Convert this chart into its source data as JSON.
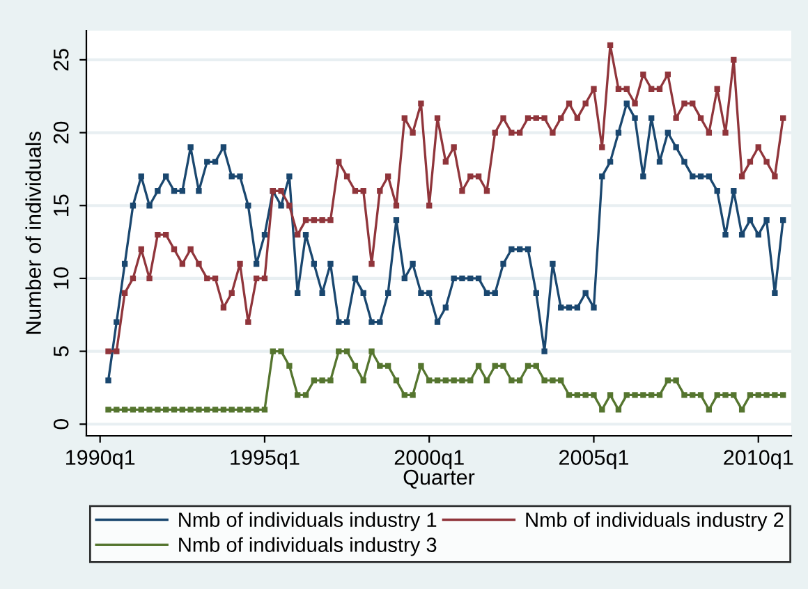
{
  "chart_data": {
    "type": "line",
    "xlabel": "Quarter",
    "ylabel": "Number of individuals",
    "x": [
      "1990-04",
      "1990-07",
      "1990-10",
      "1991-01",
      "1991-04",
      "1991-07",
      "1991-10",
      "1992-01",
      "1992-04",
      "1992-07",
      "1992-10",
      "1993-01",
      "1993-04",
      "1993-07",
      "1993-10",
      "1994-01",
      "1994-04",
      "1994-07",
      "1994-10",
      "1995-01",
      "1995-04",
      "1995-07",
      "1995-10",
      "1996-01",
      "1996-04",
      "1996-07",
      "1996-10",
      "1997-01",
      "1997-04",
      "1997-07",
      "1997-10",
      "1998-01",
      "1998-04",
      "1998-07",
      "1998-10",
      "1999-01",
      "1999-04",
      "1999-07",
      "1999-10",
      "2000-01",
      "2000-04",
      "2000-07",
      "2000-10",
      "2001-01",
      "2001-04",
      "2001-07",
      "2001-10",
      "2002-01",
      "2002-04",
      "2002-07",
      "2002-10",
      "2003-01",
      "2003-04",
      "2003-07",
      "2003-10",
      "2004-01",
      "2004-04",
      "2004-07",
      "2004-10",
      "2005-01",
      "2005-04",
      "2005-07",
      "2005-10",
      "2006-01",
      "2006-04",
      "2006-07",
      "2006-10",
      "2007-01",
      "2007-04",
      "2007-07",
      "2007-10",
      "2008-01",
      "2008-04",
      "2008-07",
      "2008-10",
      "2009-01",
      "2009-04",
      "2009-07",
      "2009-10",
      "2010-01",
      "2010-04",
      "2010-07",
      "2010-10"
    ],
    "series": [
      {
        "name": "Nmb of individuals industry 1",
        "color": "#1a476f",
        "values": [
          3,
          7,
          11,
          15,
          17,
          15,
          16,
          17,
          16,
          16,
          19,
          16,
          18,
          18,
          19,
          17,
          17,
          15,
          11,
          13,
          16,
          15,
          17,
          9,
          13,
          11,
          9,
          11,
          7,
          7,
          10,
          9,
          7,
          7,
          9,
          14,
          10,
          11,
          9,
          9,
          7,
          8,
          10,
          10,
          10,
          10,
          9,
          9,
          11,
          12,
          12,
          12,
          9,
          5,
          11,
          8,
          8,
          8,
          9,
          8,
          17,
          18,
          20,
          22,
          21,
          17,
          21,
          18,
          20,
          19,
          18,
          17,
          17,
          17,
          16,
          13,
          16,
          13,
          14,
          13,
          14,
          9,
          14
        ]
      },
      {
        "name": "Nmb of individuals industry 2",
        "color": "#90353b",
        "values": [
          5,
          5,
          9,
          10,
          12,
          10,
          13,
          13,
          12,
          11,
          12,
          11,
          10,
          10,
          8,
          9,
          11,
          7,
          10,
          10,
          16,
          16,
          15,
          13,
          14,
          14,
          14,
          14,
          18,
          17,
          16,
          16,
          11,
          16,
          17,
          15,
          21,
          20,
          22,
          15,
          21,
          18,
          19,
          16,
          17,
          17,
          16,
          20,
          21,
          20,
          20,
          21,
          21,
          21,
          20,
          21,
          22,
          21,
          22,
          23,
          19,
          26,
          23,
          23,
          22,
          24,
          23,
          23,
          24,
          21,
          22,
          22,
          21,
          20,
          23,
          20,
          25,
          17,
          18,
          19,
          18,
          17,
          21
        ]
      },
      {
        "name": "Nmb of individuals industry 3",
        "color": "#55752f",
        "values": [
          1,
          1,
          1,
          1,
          1,
          1,
          1,
          1,
          1,
          1,
          1,
          1,
          1,
          1,
          1,
          1,
          1,
          1,
          1,
          1,
          5,
          5,
          4,
          2,
          2,
          3,
          3,
          3,
          5,
          5,
          4,
          3,
          5,
          4,
          4,
          3,
          2,
          2,
          4,
          3,
          3,
          3,
          3,
          3,
          3,
          4,
          3,
          4,
          4,
          3,
          3,
          4,
          4,
          3,
          3,
          3,
          2,
          2,
          2,
          2,
          1,
          2,
          1,
          2,
          2,
          2,
          2,
          2,
          3,
          3,
          2,
          2,
          2,
          1,
          2,
          2,
          2,
          1,
          2,
          2,
          2,
          2,
          2
        ]
      }
    ],
    "xlim": [
      "1989-08",
      "2011-01"
    ],
    "xticks": [
      {
        "value": "1990-01",
        "label": "1990q1"
      },
      {
        "value": "1995-01",
        "label": "1995q1"
      },
      {
        "value": "2000-01",
        "label": "2000q1"
      },
      {
        "value": "2005-01",
        "label": "2005q1"
      },
      {
        "value": "2010-01",
        "label": "2010q1"
      }
    ],
    "ylim": [
      -0.8,
      27
    ],
    "yticks": [
      0,
      5,
      10,
      15,
      20,
      25
    ],
    "grid": "y",
    "legend": "bottom",
    "marker": "square",
    "line_style": "solid"
  }
}
